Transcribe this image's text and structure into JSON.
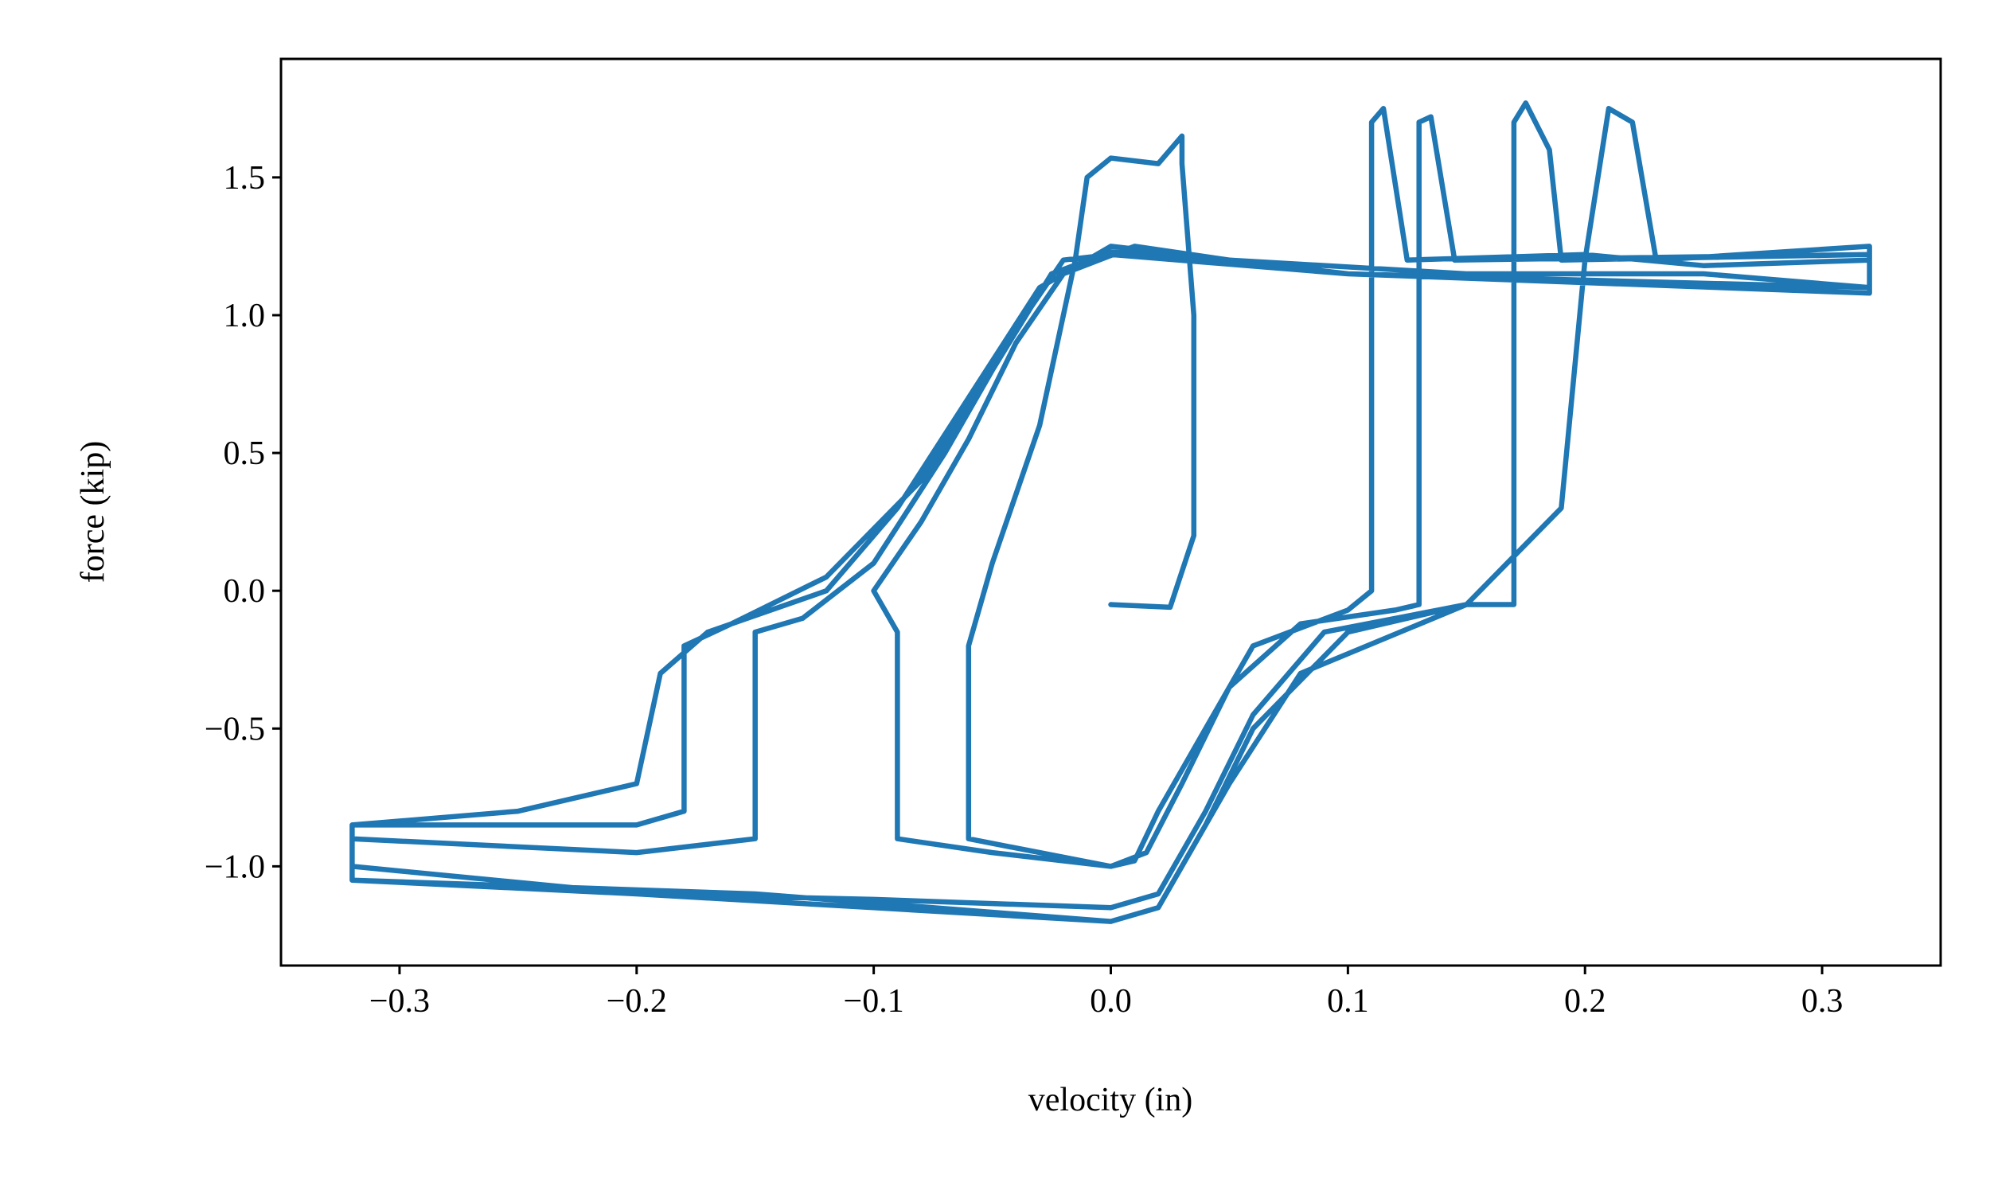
{
  "chart_data": {
    "type": "line",
    "xlabel": "velocity (in)",
    "ylabel": "force (kip)",
    "color": "#1f77b4",
    "xlim": [
      -0.35,
      0.35
    ],
    "ylim": [
      -1.36,
      1.93
    ],
    "xticks": [
      {
        "value": -0.3,
        "label": "−0.3"
      },
      {
        "value": -0.2,
        "label": "−0.2"
      },
      {
        "value": -0.1,
        "label": "−0.1"
      },
      {
        "value": 0,
        "label": "0.0"
      },
      0.1,
      0.2,
      0.3
    ],
    "yticks": [
      {
        "value": -1,
        "label": "−1.0"
      },
      {
        "value": -0.5,
        "label": "−0.5"
      },
      {
        "value": 0,
        "label": "0.0"
      },
      0.5,
      {
        "value": 1,
        "label": "1.0"
      },
      1.5
    ],
    "x": [
      0,
      0.025,
      0.035,
      0.035,
      0.03,
      0.03,
      0.02,
      0.0,
      -0.01,
      -0.015,
      -0.03,
      -0.05,
      -0.06,
      -0.06,
      -0.03,
      0.0,
      0.01,
      0.02,
      0.04,
      0.06,
      0.1,
      0.11,
      0.11,
      0.115,
      0.125,
      0.2,
      0.25,
      0.32,
      0.32,
      0.25,
      0.15,
      0.05,
      0.01,
      -0.02,
      -0.04,
      -0.06,
      -0.08,
      -0.1,
      -0.09,
      -0.09,
      -0.05,
      0.0,
      0.015,
      0.03,
      0.05,
      0.08,
      0.12,
      0.13,
      0.13,
      0.135,
      0.145,
      0.32,
      0.32,
      0.1,
      0.0,
      -0.02,
      -0.04,
      -0.07,
      -0.1,
      -0.13,
      -0.15,
      -0.15,
      -0.2,
      -0.32,
      -0.32,
      -0.2,
      -0.1,
      0.0,
      0.02,
      0.04,
      0.06,
      0.09,
      0.15,
      0.17,
      0.17,
      0.175,
      0.185,
      0.19,
      0.32,
      0.32,
      0.1,
      0.0,
      -0.025,
      -0.05,
      -0.08,
      -0.12,
      -0.16,
      -0.18,
      -0.18,
      -0.2,
      -0.32,
      -0.32,
      -0.2,
      -0.1,
      0.0,
      0.02,
      0.04,
      0.06,
      0.1,
      0.15,
      0.19,
      0.2,
      0.21,
      0.22,
      0.23,
      0.32,
      0.32,
      0.1,
      0.0,
      -0.03,
      -0.06,
      -0.09,
      -0.12,
      -0.17,
      -0.19,
      -0.2,
      -0.25,
      -0.32,
      -0.32,
      -0.15,
      0.0,
      0.02,
      0.05,
      0.08,
      0.15
    ],
    "values": [
      -0.05,
      -0.06,
      0.2,
      1.0,
      1.55,
      1.65,
      1.55,
      1.57,
      1.5,
      1.2,
      0.6,
      0.1,
      -0.2,
      -0.9,
      -0.95,
      -1.0,
      -0.98,
      -0.8,
      -0.5,
      -0.2,
      -0.07,
      0.0,
      1.7,
      1.75,
      1.2,
      1.22,
      1.18,
      1.2,
      1.1,
      1.15,
      1.15,
      1.2,
      1.25,
      1.15,
      0.9,
      0.55,
      0.25,
      0.0,
      -0.15,
      -0.9,
      -0.95,
      -1.0,
      -0.95,
      -0.7,
      -0.35,
      -0.12,
      -0.07,
      -0.05,
      1.7,
      1.72,
      1.2,
      1.22,
      1.08,
      1.15,
      1.22,
      1.2,
      0.95,
      0.5,
      0.1,
      -0.1,
      -0.15,
      -0.9,
      -0.95,
      -0.9,
      -1.05,
      -1.1,
      -1.12,
      -1.15,
      -1.1,
      -0.8,
      -0.45,
      -0.15,
      -0.05,
      -0.05,
      1.7,
      1.77,
      1.6,
      1.2,
      1.22,
      1.1,
      1.15,
      1.23,
      1.15,
      0.8,
      0.4,
      0.05,
      -0.12,
      -0.2,
      -0.8,
      -0.85,
      -0.85,
      -1.0,
      -1.1,
      -1.15,
      -1.2,
      -1.15,
      -0.85,
      -0.5,
      -0.15,
      -0.05,
      0.3,
      1.2,
      1.75,
      1.7,
      1.2,
      1.25,
      1.1,
      1.15,
      1.25,
      1.1,
      0.7,
      0.3,
      0.0,
      -0.15,
      -0.3,
      -0.7,
      -0.8,
      -0.85,
      -1.05,
      -1.1,
      -1.2,
      -1.15,
      -0.7,
      -0.3,
      -0.05
    ]
  }
}
